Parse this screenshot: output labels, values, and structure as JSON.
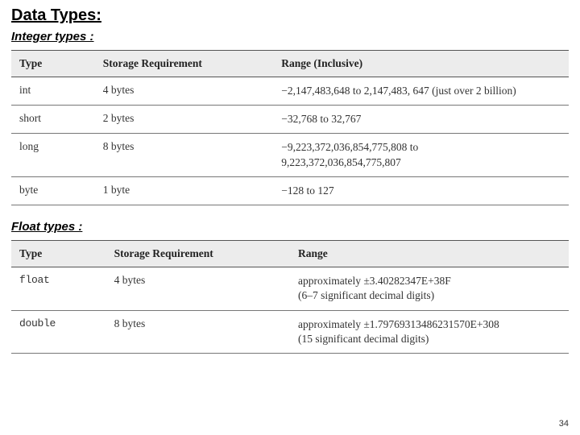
{
  "heading": {
    "main": "Data Types:",
    "integer": "Integer types :",
    "float": "Float types :"
  },
  "integer_table": {
    "type": "table",
    "header_bg": "#ececec",
    "border_color": "#777777",
    "font_size": 13.5,
    "columns": [
      {
        "label": "Type",
        "width_pct": 15
      },
      {
        "label": "Storage Requirement",
        "width_pct": 32
      },
      {
        "label": "Range (Inclusive)",
        "width_pct": 53
      }
    ],
    "rows": [
      {
        "type": "int",
        "storage": "4 bytes",
        "range": "−2,147,483,648 to 2,147,483, 647 (just over 2 billion)"
      },
      {
        "type": "short",
        "storage": "2 bytes",
        "range": "−32,768 to 32,767"
      },
      {
        "type": "long",
        "storage": "8 bytes",
        "range": "−9,223,372,036,854,775,808 to\n9,223,372,036,854,775,807"
      },
      {
        "type": "byte",
        "storage": "1 byte",
        "range": "−128 to 127"
      }
    ]
  },
  "float_table": {
    "type": "table",
    "header_bg": "#ececec",
    "border_color": "#777777",
    "font_size": 13.5,
    "mono_font": "Courier New",
    "columns": [
      {
        "label": "Type",
        "width_pct": 17
      },
      {
        "label": "Storage Requirement",
        "width_pct": 33
      },
      {
        "label": "Range",
        "width_pct": 50
      }
    ],
    "rows": [
      {
        "type": "float",
        "storage": "4 bytes",
        "range": "approximately ±3.40282347E+38F\n(6–7 significant decimal digits)"
      },
      {
        "type": "double",
        "storage": "8 bytes",
        "range": "approximately ±1.79769313486231570E+308\n(15 significant decimal digits)"
      }
    ]
  },
  "page_number": "34",
  "colors": {
    "background": "#ffffff",
    "text": "#000000",
    "cell_text": "#333333"
  }
}
